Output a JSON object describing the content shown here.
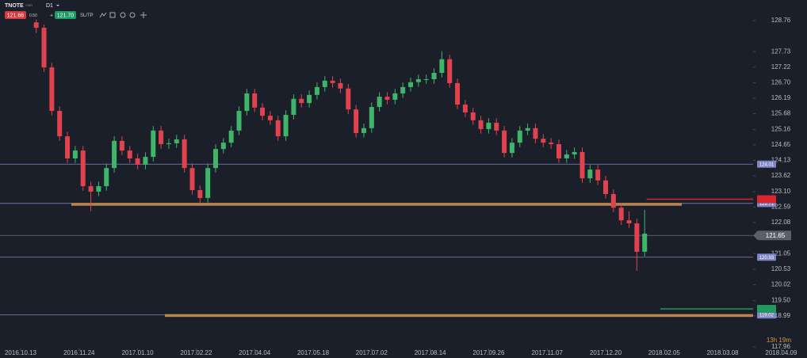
{
  "chart_data": {
    "type": "candlestick",
    "symbol": "TNOTE",
    "market": "CMD",
    "timeframe": "D1",
    "bid": "121.66",
    "spread": "0.50",
    "ask": "121.70",
    "sltp": "SL/TP",
    "countdown": "13h 19m",
    "up_color": "#3fb56a",
    "down_color": "#e0434d",
    "x": [
      8,
      12,
      16,
      20,
      24,
      28,
      32,
      36,
      40,
      44,
      48,
      52,
      56,
      60,
      64,
      68,
      72,
      76,
      80,
      84,
      88,
      92,
      96,
      100,
      104,
      108,
      112,
      116,
      120,
      124,
      128,
      132,
      136,
      140,
      144,
      148,
      152,
      156,
      160,
      164,
      168,
      172,
      176,
      180,
      184,
      188,
      192,
      196,
      200,
      204,
      208,
      212,
      216,
      220,
      224,
      228,
      232,
      236,
      240,
      244,
      248,
      252,
      256,
      260,
      264,
      268,
      272,
      276,
      280,
      284,
      288,
      292,
      296,
      300,
      304,
      308,
      312,
      316,
      320
    ],
    "open": [
      128.7,
      128.52,
      127.21,
      125.77,
      124.93,
      124.2,
      124.46,
      123.28,
      123.1,
      123.28,
      123.88,
      124.78,
      124.46,
      124.2,
      123.99,
      124.25,
      125.12,
      124.67,
      124.7,
      124.83,
      123.88,
      123.15,
      122.89,
      123.88,
      124.51,
      124.72,
      125.12,
      125.77,
      126.35,
      125.88,
      125.61,
      125.46,
      124.93,
      125.64,
      126.17,
      126.03,
      126.3,
      126.56,
      126.77,
      126.69,
      126.51,
      125.82,
      125.04,
      125.2,
      125.9,
      126.24,
      126.14,
      126.35,
      126.56,
      126.72,
      126.82,
      126.82,
      127.03,
      127.48,
      126.69,
      125.98,
      125.72,
      125.46,
      125.17,
      125.38,
      125.12,
      124.38,
      124.72,
      125.12,
      125.2,
      124.85,
      124.72,
      124.67,
      124.2,
      124.33,
      124.41,
      123.54,
      123.83,
      123.47,
      123.02,
      122.57,
      122.15,
      122.05,
      121.11
    ],
    "high": [
      128.8,
      128.62,
      127.36,
      125.92,
      125.08,
      124.61,
      124.61,
      123.43,
      123.43,
      124.03,
      124.93,
      124.93,
      124.61,
      124.35,
      124.4,
      125.27,
      125.27,
      124.85,
      124.98,
      124.98,
      124.03,
      123.3,
      124.03,
      124.66,
      124.87,
      125.27,
      125.92,
      126.5,
      126.5,
      126.03,
      125.76,
      125.61,
      125.79,
      126.32,
      126.32,
      126.45,
      126.71,
      126.92,
      126.92,
      126.84,
      126.66,
      125.97,
      125.35,
      126.05,
      126.39,
      126.39,
      126.5,
      126.71,
      126.87,
      126.97,
      126.97,
      127.18,
      127.75,
      127.63,
      126.84,
      126.13,
      125.87,
      125.61,
      125.53,
      125.53,
      125.27,
      124.87,
      125.27,
      125.35,
      125.35,
      125.0,
      124.87,
      124.82,
      124.48,
      124.56,
      124.56,
      123.98,
      123.98,
      123.62,
      123.17,
      122.72,
      122.45,
      122.2,
      122.5
    ],
    "low": [
      128.35,
      127.06,
      125.62,
      124.78,
      124.05,
      124.05,
      123.13,
      122.45,
      122.95,
      123.13,
      123.73,
      124.31,
      124.05,
      123.84,
      123.84,
      124.1,
      124.52,
      124.52,
      124.55,
      123.73,
      123.0,
      122.7,
      122.74,
      123.73,
      124.36,
      124.57,
      124.97,
      125.62,
      125.73,
      125.46,
      125.31,
      124.78,
      124.78,
      125.49,
      125.88,
      125.88,
      126.15,
      126.41,
      126.54,
      126.36,
      125.67,
      124.89,
      124.89,
      125.05,
      125.75,
      125.99,
      125.99,
      126.2,
      126.41,
      126.57,
      126.67,
      126.67,
      126.88,
      126.54,
      125.83,
      125.57,
      125.31,
      125.02,
      125.02,
      124.97,
      124.23,
      124.23,
      124.57,
      124.97,
      124.7,
      124.57,
      124.52,
      124.05,
      124.05,
      124.18,
      123.39,
      123.39,
      123.32,
      122.87,
      122.42,
      122.0,
      121.9,
      120.48,
      120.96
    ],
    "close": [
      128.52,
      127.21,
      125.77,
      124.93,
      124.2,
      124.46,
      123.28,
      123.1,
      123.28,
      123.88,
      124.78,
      124.46,
      124.2,
      123.99,
      124.25,
      125.12,
      124.67,
      124.7,
      124.83,
      123.88,
      123.15,
      122.89,
      123.88,
      124.51,
      124.72,
      125.12,
      125.77,
      126.35,
      125.88,
      125.61,
      125.46,
      124.93,
      125.64,
      126.17,
      126.03,
      126.3,
      126.56,
      126.77,
      126.69,
      126.51,
      125.82,
      125.04,
      125.2,
      125.9,
      126.24,
      126.14,
      126.35,
      126.56,
      126.72,
      126.82,
      126.82,
      127.03,
      127.48,
      126.69,
      125.98,
      125.72,
      125.46,
      125.17,
      125.38,
      125.12,
      124.38,
      124.72,
      125.12,
      125.2,
      124.85,
      124.72,
      124.67,
      124.2,
      124.33,
      124.41,
      123.54,
      123.83,
      123.47,
      123.02,
      122.57,
      122.15,
      122.05,
      121.11,
      121.71
    ],
    "xlim": [
      -10.57,
      375.6
    ],
    "xticks": [
      {
        "value": 0,
        "label": "2016.10.13"
      },
      {
        "value": 30,
        "label": "2016.11.24"
      },
      {
        "value": 60,
        "label": "2017.01.10"
      },
      {
        "value": 90,
        "label": "2017.02.22"
      },
      {
        "value": 120,
        "label": "2017.04.04"
      },
      {
        "value": 150,
        "label": "2017.05.18"
      },
      {
        "value": 180,
        "label": "2017.07.02"
      },
      {
        "value": 210,
        "label": "2017.08.14"
      },
      {
        "value": 240,
        "label": "2017.09.26"
      },
      {
        "value": 270,
        "label": "2017.11.07"
      },
      {
        "value": 300,
        "label": "2017.12.20"
      },
      {
        "value": 330,
        "label": "2018.02.05"
      },
      {
        "value": 360,
        "label": "2018.03.08"
      },
      {
        "value": 390,
        "label": "2018.04.09"
      }
    ],
    "ylim": [
      117.91,
      129.44
    ],
    "yticks": [
      128.76,
      127.73,
      127.22,
      {
        "value": 126.7,
        "label": "126.70"
      },
      126.19,
      125.68,
      125.16,
      124.65,
      124.13,
      123.62,
      {
        "value": 123.1,
        "label": "123.10"
      },
      122.59,
      122.08,
      121.05,
      120.53,
      120.02,
      {
        "value": 119.5,
        "label": "119.50"
      },
      118.99,
      117.96
    ],
    "price_lines": [
      124.01,
      122.71,
      120.93,
      119.02
    ],
    "price_line_color": "#7d86c4",
    "current_price": 121.65,
    "zones": [
      {
        "value": 122.68,
        "x": [
          26,
          339
        ]
      },
      {
        "value": 119.0,
        "x": [
          74,
          375.6
        ]
      }
    ],
    "zone_color": "#c98d4e",
    "stop_loss": {
      "value": 122.85,
      "x": [
        321,
        375.6
      ],
      "color": "#d9262f"
    },
    "take_profit": {
      "value": 119.22,
      "x": [
        328,
        375.6
      ],
      "color": "#1f9a5c"
    }
  }
}
